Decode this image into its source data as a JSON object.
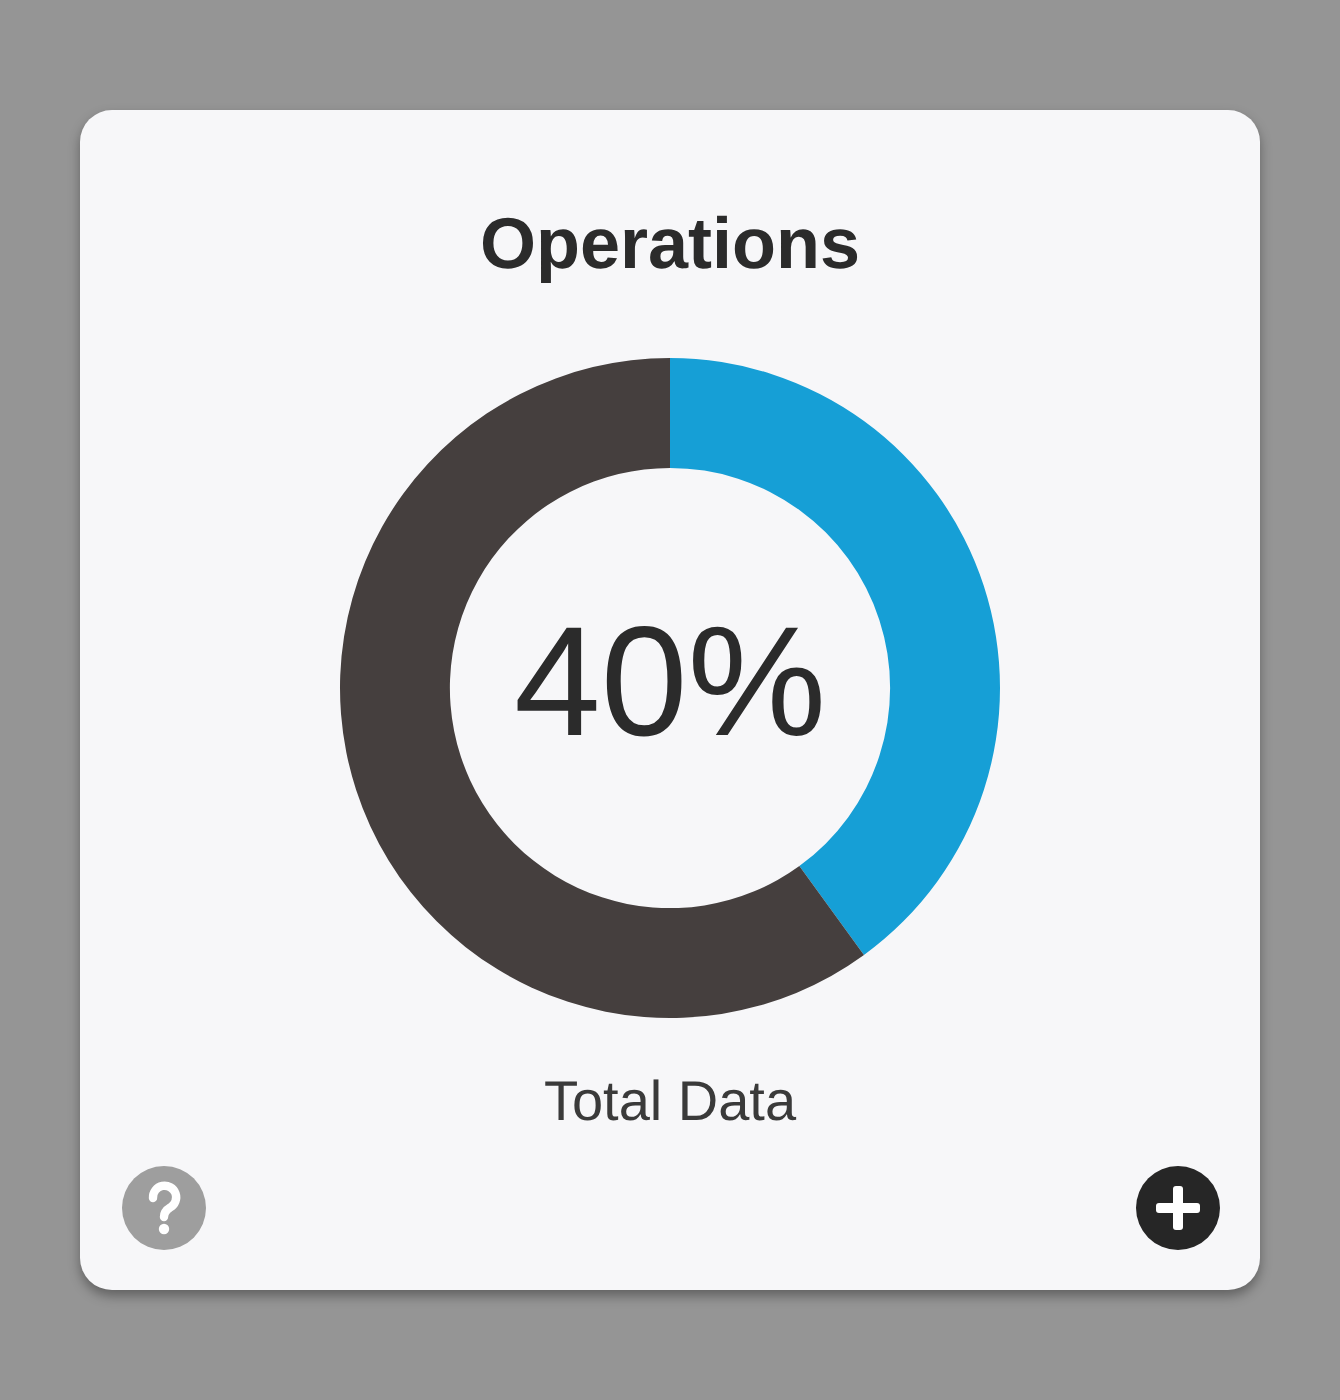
{
  "chart_data": {
    "type": "donut",
    "title": "Operations",
    "categories": [
      null,
      null
    ],
    "values": [
      40,
      60
    ],
    "colors": [
      "#169fd6",
      "#453f3e"
    ],
    "value_labels": [
      "40%",
      null
    ],
    "annotations": [
      "Total Data"
    ]
  }
}
